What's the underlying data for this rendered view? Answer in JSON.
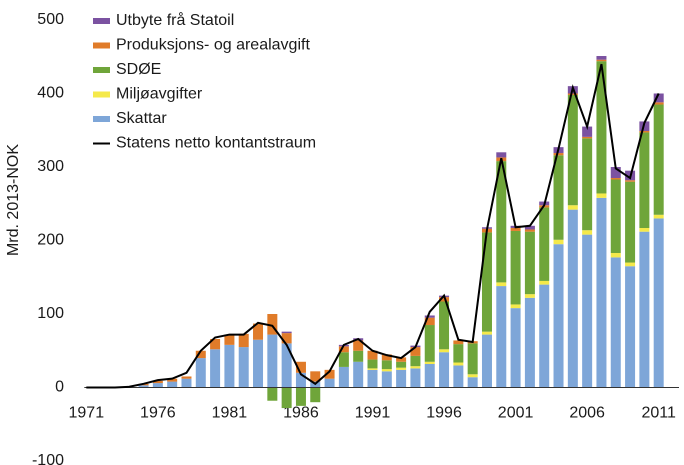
{
  "chart_data": {
    "type": "bar",
    "ylabel": "Mrd. 2013-NOK",
    "x": [
      1971,
      1972,
      1973,
      1974,
      1975,
      1976,
      1977,
      1978,
      1979,
      1980,
      1981,
      1982,
      1983,
      1984,
      1985,
      1986,
      1987,
      1988,
      1989,
      1990,
      1991,
      1992,
      1993,
      1994,
      1995,
      1996,
      1997,
      1998,
      1999,
      2000,
      2001,
      2002,
      2003,
      2004,
      2005,
      2006,
      2007,
      2008,
      2009,
      2010,
      2011
    ],
    "xlim": [
      1970,
      2012
    ],
    "xticks": [
      1971,
      1976,
      1981,
      1986,
      1991,
      1996,
      2001,
      2006,
      2011
    ],
    "ylim": [
      -100,
      500
    ],
    "yticks": [
      -100,
      0,
      100,
      200,
      300,
      400,
      500
    ],
    "stacked": true,
    "series": [
      {
        "name": "Skattar",
        "color": "#7ea6d8",
        "values": [
          0,
          0,
          0,
          1,
          3,
          6,
          8,
          12,
          40,
          52,
          58,
          55,
          65,
          72,
          60,
          20,
          8,
          12,
          28,
          35,
          24,
          22,
          24,
          26,
          32,
          48,
          30,
          14,
          72,
          138,
          108,
          122,
          140,
          195,
          242,
          208,
          258,
          177,
          165,
          212,
          230
        ]
      },
      {
        "name": "Miljøavgifter",
        "color": "#f5e94a",
        "values": [
          0,
          0,
          0,
          0,
          0,
          0,
          0,
          0,
          0,
          0,
          0,
          0,
          0,
          0,
          0,
          0,
          0,
          0,
          0,
          0,
          2,
          3,
          3,
          3,
          3,
          4,
          4,
          4,
          4,
          5,
          5,
          5,
          5,
          6,
          6,
          6,
          6,
          6,
          5,
          5,
          5
        ]
      },
      {
        "name": "SDØE",
        "color": "#6fa53a",
        "values": [
          0,
          0,
          0,
          0,
          0,
          0,
          0,
          0,
          0,
          0,
          0,
          0,
          0,
          -18,
          -28,
          -25,
          -20,
          0,
          20,
          15,
          12,
          12,
          8,
          14,
          50,
          65,
          25,
          42,
          135,
          165,
          100,
          85,
          100,
          115,
          150,
          125,
          180,
          100,
          110,
          130,
          150
        ]
      },
      {
        "name": "Produksjons- og arealavgift",
        "color": "#e07b29",
        "values": [
          0,
          0,
          0,
          0,
          2,
          3,
          4,
          3,
          10,
          14,
          14,
          18,
          22,
          28,
          14,
          15,
          14,
          12,
          8,
          14,
          12,
          8,
          6,
          12,
          10,
          6,
          5,
          3,
          5,
          5,
          4,
          3,
          3,
          3,
          2,
          2,
          2,
          2,
          2,
          2,
          3
        ]
      },
      {
        "name": "Utbyte frå Statoil",
        "color": "#7b52a1",
        "values": [
          0,
          0,
          0,
          0,
          0,
          0,
          0,
          0,
          0,
          0,
          0,
          0,
          0,
          0,
          2,
          0,
          0,
          0,
          2,
          3,
          0,
          0,
          0,
          2,
          3,
          2,
          0,
          0,
          2,
          7,
          3,
          5,
          5,
          8,
          10,
          14,
          5,
          15,
          13,
          13,
          12
        ]
      }
    ],
    "line": {
      "name": "Statens netto kontantstraum",
      "color": "#000000",
      "values": [
        0,
        0,
        0,
        1,
        5,
        10,
        12,
        20,
        50,
        68,
        72,
        72,
        88,
        84,
        58,
        18,
        5,
        22,
        58,
        66,
        50,
        44,
        40,
        55,
        103,
        125,
        65,
        62,
        215,
        312,
        218,
        220,
        248,
        325,
        408,
        355,
        440,
        298,
        285,
        360,
        400
      ]
    }
  }
}
